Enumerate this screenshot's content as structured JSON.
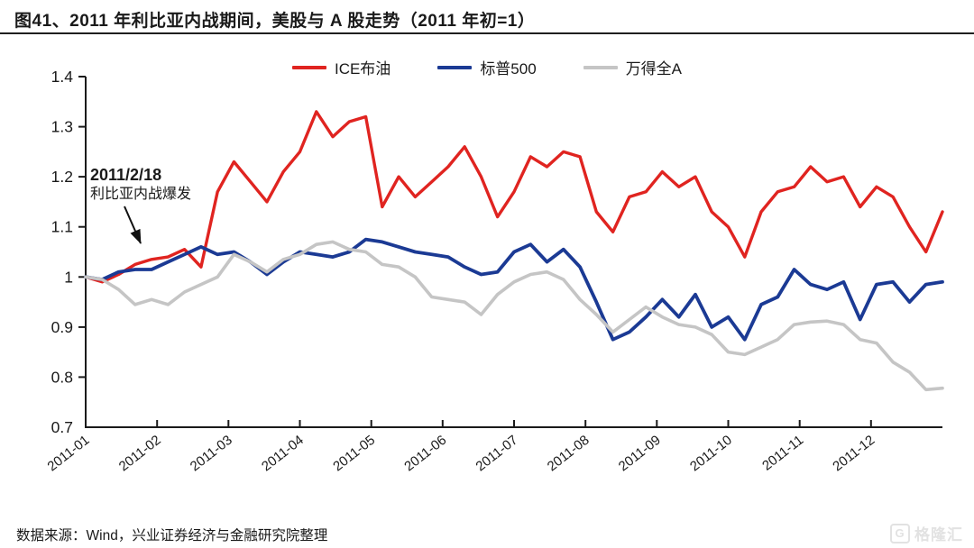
{
  "header": {
    "title": "图41、2011 年利比亚内战期间，美股与 A 股走势（2011 年初=1）"
  },
  "annotation": {
    "date": "2011/2/18",
    "event": "利比亚内战爆发"
  },
  "footer": {
    "source": "数据来源：Wind，兴业证券经济与金融研究院整理"
  },
  "watermark": {
    "brand": "格隆汇"
  },
  "colors": {
    "brent_red": "#e02420",
    "sp500_blue": "#1b3a94",
    "winda_gray": "#c5c5c5",
    "axis": "#1a1a1a"
  },
  "chart_data": {
    "type": "line",
    "title": "图41、2011 年利比亚内战期间，美股与 A 股走势（2011 年初=1）",
    "xlabel": "",
    "ylabel": "",
    "ylim": [
      0.7,
      1.4
    ],
    "y_ticks": [
      1.4,
      1.3,
      1.2,
      1.1,
      1.0,
      0.9,
      0.8,
      0.7
    ],
    "y_tick_labels": [
      "1.4",
      "1.3",
      "1.2",
      "1.1",
      "1",
      "0.9",
      "0.8",
      "0.7"
    ],
    "x_tick_labels": [
      "2011-01",
      "2011-02",
      "2011-03",
      "2011-04",
      "2011-05",
      "2011-06",
      "2011-07",
      "2011-08",
      "2011-09",
      "2011-10",
      "2011-11",
      "2011-12"
    ],
    "x_description": "weekly samples from 2011-01-01 to 2011-12-31, all series indexed to 1 at start of 2011",
    "grid": false,
    "legend_position": "top-center",
    "series": [
      {
        "id": "brent",
        "name": "ICE布油",
        "color": "#e02420",
        "width": 3.4,
        "values": [
          1.0,
          0.99,
          1.005,
          1.025,
          1.035,
          1.04,
          1.055,
          1.02,
          1.17,
          1.23,
          1.19,
          1.15,
          1.21,
          1.25,
          1.33,
          1.28,
          1.31,
          1.32,
          1.14,
          1.2,
          1.16,
          1.19,
          1.22,
          1.26,
          1.2,
          1.12,
          1.17,
          1.24,
          1.22,
          1.25,
          1.24,
          1.13,
          1.09,
          1.16,
          1.17,
          1.21,
          1.18,
          1.2,
          1.13,
          1.1,
          1.04,
          1.13,
          1.17,
          1.18,
          1.22,
          1.19,
          1.2,
          1.14,
          1.18,
          1.16,
          1.1,
          1.05,
          1.13
        ]
      },
      {
        "id": "sp500",
        "name": "标普500",
        "color": "#1b3a94",
        "width": 3.8,
        "values": [
          1.0,
          0.995,
          1.01,
          1.015,
          1.015,
          1.03,
          1.045,
          1.06,
          1.045,
          1.05,
          1.03,
          1.005,
          1.03,
          1.05,
          1.045,
          1.04,
          1.05,
          1.075,
          1.07,
          1.06,
          1.05,
          1.045,
          1.04,
          1.02,
          1.005,
          1.01,
          1.05,
          1.065,
          1.03,
          1.055,
          1.02,
          0.95,
          0.875,
          0.89,
          0.92,
          0.955,
          0.92,
          0.965,
          0.9,
          0.92,
          0.875,
          0.945,
          0.96,
          1.015,
          0.985,
          0.975,
          0.99,
          0.915,
          0.985,
          0.99,
          0.95,
          0.985,
          0.99
        ]
      },
      {
        "id": "wind-a",
        "name": "万得全A",
        "color": "#c5c5c5",
        "width": 3.6,
        "values": [
          1.0,
          0.995,
          0.975,
          0.945,
          0.955,
          0.945,
          0.97,
          0.985,
          1.0,
          1.045,
          1.03,
          1.01,
          1.035,
          1.045,
          1.065,
          1.07,
          1.055,
          1.05,
          1.025,
          1.02,
          1.0,
          0.96,
          0.955,
          0.95,
          0.925,
          0.965,
          0.99,
          1.005,
          1.01,
          0.995,
          0.955,
          0.925,
          0.89,
          0.915,
          0.94,
          0.92,
          0.905,
          0.9,
          0.885,
          0.85,
          0.845,
          0.86,
          0.875,
          0.905,
          0.91,
          0.912,
          0.905,
          0.875,
          0.868,
          0.83,
          0.81,
          0.775,
          0.778
        ]
      }
    ]
  }
}
